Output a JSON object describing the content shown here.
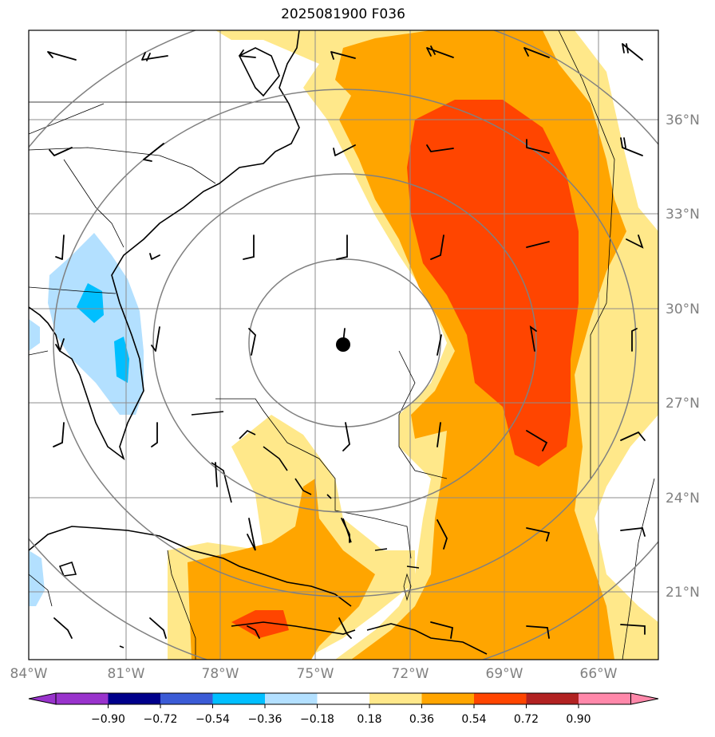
{
  "title": "2025081900 F036",
  "map": {
    "lon_ticks": [
      "84°W",
      "81°W",
      "78°W",
      "75°W",
      "72°W",
      "69°W",
      "66°W"
    ],
    "lat_ticks": [
      "36°N",
      "33°N",
      "30°N",
      "27°N",
      "24°N",
      "21°N"
    ],
    "center_marker": "storm-center-dot",
    "range_rings": 4
  },
  "colorbar": {
    "labels": [
      "−0.90",
      "−0.72",
      "−0.54",
      "−0.36",
      "−0.18",
      "0.18",
      "0.36",
      "0.54",
      "0.72",
      "0.90"
    ],
    "colors": [
      "#9933cc",
      "#00008b",
      "#3b5bd6",
      "#00bfff",
      "#b3e0ff",
      "#ffffff",
      "#ffe88a",
      "#ffa500",
      "#ff4500",
      "#b22222",
      "#ff88aa",
      "#ff88aa"
    ]
  }
}
